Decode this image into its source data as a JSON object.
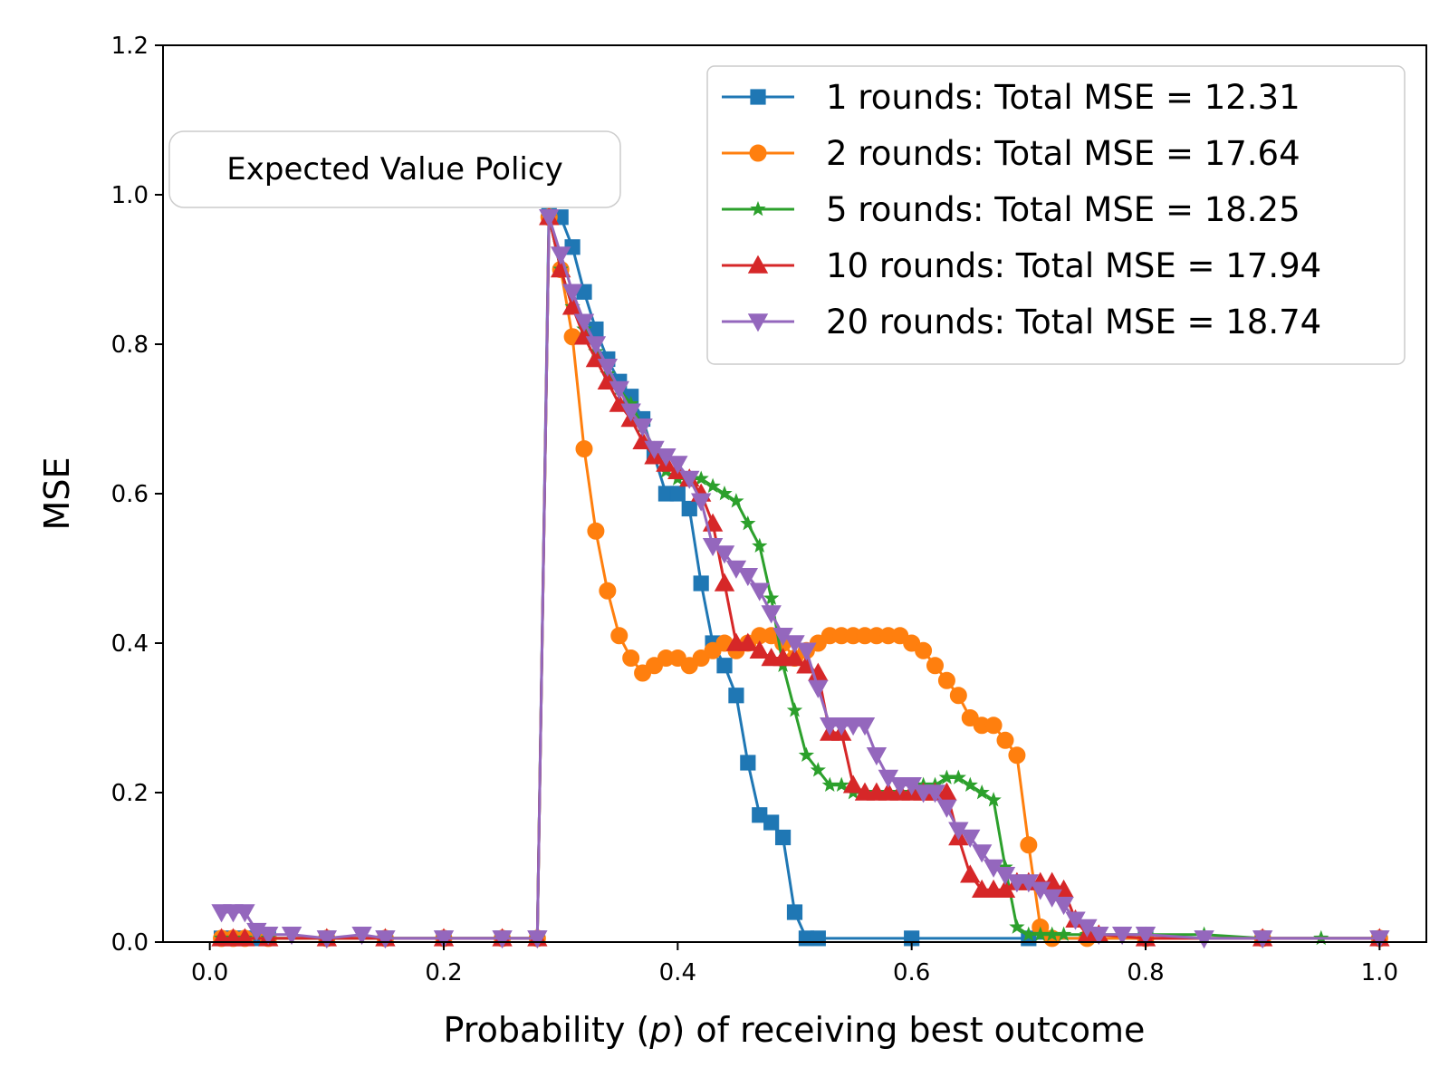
{
  "chart_data": {
    "type": "line",
    "title": "",
    "xlabel_parts": [
      "Probability (",
      "p",
      ") of receiving best outcome"
    ],
    "ylabel": "MSE",
    "xlim": [
      -0.04,
      1.04
    ],
    "ylim": [
      0.0,
      1.2
    ],
    "xticks": [
      0.0,
      0.2,
      0.4,
      0.6,
      0.8,
      1.0
    ],
    "xtick_labels": [
      "0.0",
      "0.2",
      "0.4",
      "0.6",
      "0.8",
      "1.0"
    ],
    "yticks": [
      0.0,
      0.2,
      0.4,
      0.6,
      0.8,
      1.0,
      1.2
    ],
    "ytick_labels": [
      "0.0",
      "0.2",
      "0.4",
      "0.6",
      "0.8",
      "1.0",
      "1.2"
    ],
    "grid": false,
    "legend_position": "top-right",
    "annotation": "Expected Value Policy",
    "series": [
      {
        "name": "1 rounds: Total MSE = 12.31",
        "color": "#1f77b4",
        "marker": "square",
        "x": [
          0.01,
          0.02,
          0.03,
          0.04,
          0.05,
          0.1,
          0.15,
          0.2,
          0.25,
          0.28,
          0.29,
          0.3,
          0.31,
          0.32,
          0.33,
          0.34,
          0.35,
          0.36,
          0.37,
          0.38,
          0.39,
          0.4,
          0.41,
          0.42,
          0.43,
          0.44,
          0.45,
          0.46,
          0.47,
          0.48,
          0.49,
          0.5,
          0.51,
          0.52,
          0.6,
          0.7,
          0.8,
          0.9,
          1.0
        ],
        "y": [
          0.005,
          0.005,
          0.005,
          0.005,
          0.005,
          0.005,
          0.005,
          0.005,
          0.005,
          0.005,
          0.99,
          0.97,
          0.93,
          0.87,
          0.82,
          0.78,
          0.75,
          0.73,
          0.7,
          0.65,
          0.6,
          0.6,
          0.58,
          0.48,
          0.4,
          0.37,
          0.33,
          0.24,
          0.17,
          0.16,
          0.14,
          0.04,
          0.005,
          0.005,
          0.005,
          0.005,
          0.005,
          0.005,
          0.005
        ]
      },
      {
        "name": "2 rounds: Total MSE = 17.64",
        "color": "#ff7f0e",
        "marker": "circle",
        "x": [
          0.01,
          0.02,
          0.03,
          0.05,
          0.1,
          0.15,
          0.2,
          0.25,
          0.28,
          0.29,
          0.3,
          0.31,
          0.32,
          0.33,
          0.34,
          0.35,
          0.36,
          0.37,
          0.38,
          0.39,
          0.4,
          0.41,
          0.42,
          0.43,
          0.44,
          0.45,
          0.46,
          0.47,
          0.48,
          0.49,
          0.5,
          0.51,
          0.52,
          0.53,
          0.54,
          0.55,
          0.56,
          0.57,
          0.58,
          0.59,
          0.6,
          0.61,
          0.62,
          0.63,
          0.64,
          0.65,
          0.66,
          0.67,
          0.68,
          0.69,
          0.7,
          0.71,
          0.72,
          0.75,
          0.8,
          0.9,
          1.0
        ],
        "y": [
          0.005,
          0.005,
          0.005,
          0.005,
          0.005,
          0.005,
          0.005,
          0.005,
          0.005,
          0.97,
          0.9,
          0.81,
          0.66,
          0.55,
          0.47,
          0.41,
          0.38,
          0.36,
          0.37,
          0.38,
          0.38,
          0.37,
          0.38,
          0.39,
          0.4,
          0.39,
          0.4,
          0.41,
          0.41,
          0.4,
          0.38,
          0.39,
          0.4,
          0.41,
          0.41,
          0.41,
          0.41,
          0.41,
          0.41,
          0.41,
          0.4,
          0.39,
          0.37,
          0.35,
          0.33,
          0.3,
          0.29,
          0.29,
          0.27,
          0.25,
          0.13,
          0.02,
          0.005,
          0.005,
          0.005,
          0.005,
          0.005
        ]
      },
      {
        "name": "5 rounds: Total MSE = 18.25",
        "color": "#2ca02c",
        "marker": "star",
        "x": [
          0.01,
          0.02,
          0.03,
          0.05,
          0.1,
          0.15,
          0.2,
          0.25,
          0.28,
          0.29,
          0.3,
          0.31,
          0.32,
          0.33,
          0.34,
          0.35,
          0.36,
          0.37,
          0.38,
          0.39,
          0.4,
          0.41,
          0.42,
          0.43,
          0.44,
          0.45,
          0.46,
          0.47,
          0.48,
          0.49,
          0.5,
          0.51,
          0.52,
          0.53,
          0.54,
          0.55,
          0.56,
          0.57,
          0.58,
          0.59,
          0.6,
          0.61,
          0.62,
          0.63,
          0.64,
          0.65,
          0.66,
          0.67,
          0.68,
          0.69,
          0.7,
          0.71,
          0.72,
          0.73,
          0.75,
          0.8,
          0.85,
          0.9,
          0.95,
          1.0
        ],
        "y": [
          0.005,
          0.005,
          0.005,
          0.005,
          0.005,
          0.005,
          0.005,
          0.005,
          0.005,
          0.97,
          0.9,
          0.85,
          0.82,
          0.79,
          0.76,
          0.74,
          0.72,
          0.69,
          0.66,
          0.63,
          0.62,
          0.62,
          0.62,
          0.61,
          0.6,
          0.59,
          0.56,
          0.53,
          0.46,
          0.37,
          0.31,
          0.25,
          0.23,
          0.21,
          0.21,
          0.2,
          0.2,
          0.2,
          0.2,
          0.2,
          0.2,
          0.21,
          0.21,
          0.22,
          0.22,
          0.21,
          0.2,
          0.19,
          0.1,
          0.02,
          0.01,
          0.01,
          0.01,
          0.01,
          0.01,
          0.01,
          0.01,
          0.005,
          0.005,
          0.005
        ]
      },
      {
        "name": "10 rounds: Total MSE = 17.94",
        "color": "#d62728",
        "marker": "triangle-up",
        "x": [
          0.01,
          0.02,
          0.03,
          0.05,
          0.1,
          0.15,
          0.2,
          0.25,
          0.28,
          0.29,
          0.3,
          0.31,
          0.32,
          0.33,
          0.34,
          0.35,
          0.36,
          0.37,
          0.38,
          0.39,
          0.4,
          0.41,
          0.42,
          0.43,
          0.44,
          0.45,
          0.46,
          0.47,
          0.48,
          0.49,
          0.5,
          0.51,
          0.52,
          0.53,
          0.54,
          0.55,
          0.56,
          0.57,
          0.58,
          0.59,
          0.6,
          0.61,
          0.62,
          0.63,
          0.64,
          0.65,
          0.66,
          0.67,
          0.68,
          0.69,
          0.7,
          0.71,
          0.72,
          0.73,
          0.74,
          0.75,
          0.76,
          0.8,
          0.9,
          1.0
        ],
        "y": [
          0.005,
          0.005,
          0.005,
          0.005,
          0.005,
          0.005,
          0.005,
          0.005,
          0.005,
          0.97,
          0.9,
          0.85,
          0.81,
          0.78,
          0.75,
          0.72,
          0.7,
          0.67,
          0.65,
          0.64,
          0.63,
          0.62,
          0.6,
          0.56,
          0.48,
          0.4,
          0.4,
          0.39,
          0.38,
          0.38,
          0.38,
          0.37,
          0.36,
          0.28,
          0.28,
          0.21,
          0.2,
          0.2,
          0.2,
          0.2,
          0.2,
          0.2,
          0.2,
          0.2,
          0.14,
          0.09,
          0.07,
          0.07,
          0.07,
          0.08,
          0.08,
          0.08,
          0.08,
          0.07,
          0.03,
          0.01,
          0.01,
          0.005,
          0.005,
          0.005
        ]
      },
      {
        "name": "20 rounds: Total MSE = 18.74",
        "color": "#9467bd",
        "marker": "triangle-down",
        "x": [
          0.01,
          0.02,
          0.03,
          0.04,
          0.05,
          0.07,
          0.1,
          0.13,
          0.15,
          0.2,
          0.25,
          0.28,
          0.29,
          0.3,
          0.31,
          0.32,
          0.33,
          0.34,
          0.35,
          0.36,
          0.37,
          0.38,
          0.39,
          0.4,
          0.41,
          0.42,
          0.43,
          0.44,
          0.45,
          0.46,
          0.47,
          0.48,
          0.49,
          0.5,
          0.51,
          0.52,
          0.53,
          0.54,
          0.55,
          0.56,
          0.57,
          0.58,
          0.59,
          0.6,
          0.61,
          0.62,
          0.63,
          0.64,
          0.65,
          0.66,
          0.67,
          0.68,
          0.69,
          0.7,
          0.71,
          0.72,
          0.73,
          0.74,
          0.75,
          0.76,
          0.78,
          0.8,
          0.85,
          0.9,
          1.0
        ],
        "y": [
          0.04,
          0.04,
          0.04,
          0.015,
          0.01,
          0.01,
          0.005,
          0.01,
          0.005,
          0.005,
          0.005,
          0.005,
          0.97,
          0.92,
          0.87,
          0.83,
          0.8,
          0.77,
          0.74,
          0.71,
          0.69,
          0.66,
          0.65,
          0.64,
          0.62,
          0.59,
          0.53,
          0.52,
          0.5,
          0.49,
          0.47,
          0.44,
          0.41,
          0.4,
          0.39,
          0.34,
          0.29,
          0.29,
          0.29,
          0.29,
          0.25,
          0.22,
          0.21,
          0.21,
          0.2,
          0.2,
          0.18,
          0.15,
          0.14,
          0.12,
          0.1,
          0.09,
          0.08,
          0.08,
          0.07,
          0.06,
          0.05,
          0.03,
          0.02,
          0.01,
          0.01,
          0.01,
          0.005,
          0.005,
          0.005
        ]
      }
    ]
  }
}
